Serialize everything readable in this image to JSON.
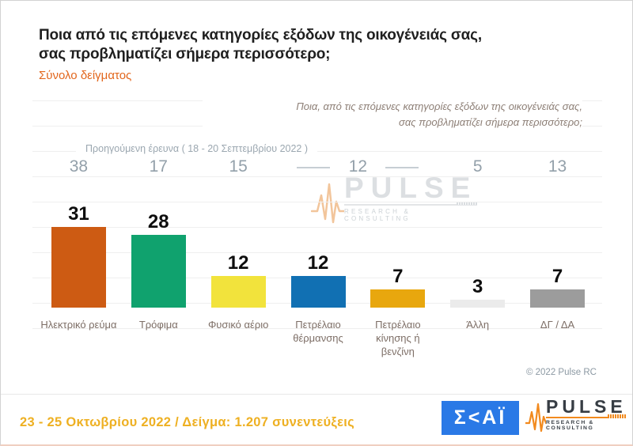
{
  "header": {
    "title_line1": "Ποια από τις επόμενες κατηγορίες εξόδων της οικογένειάς σας,",
    "title_line2": "σας προβληματίζει σήμερα περισσότερο;",
    "subtitle": "Σύνολο δείγματος"
  },
  "chart_note": {
    "line1": "Ποια, από τις επόμενες κατηγορίες εξόδων της οικογένειάς σας,",
    "line2": "σας προβληματίζει σήμερα περισσότερο;"
  },
  "chart_data": {
    "type": "bar",
    "title": "Ποια από τις επόμενες κατηγορίες εξόδων της οικογένειάς σας, σας προβληματίζει σήμερα περισσότερο;",
    "categories": [
      "Ηλεκτρικό ρεύμα",
      "Τρόφιμα",
      "Φυσικό αέριο",
      "Πετρέλαιο θέρμανσης",
      "Πετρέλαιο κίνησης ή βενζίνη",
      "Άλλη",
      "ΔΓ / ΔΑ"
    ],
    "values": [
      31,
      28,
      12,
      12,
      7,
      3,
      7
    ],
    "bar_colors": [
      "#cd5b13",
      "#10a26e",
      "#f2e33c",
      "#1170b3",
      "#e8a70e",
      "#ebebeb",
      "#9c9c9c"
    ],
    "previous_survey_label": "Προηγούμενη έρευνα  ( 18 - 20 Σεπτεμβρίου  2022 )",
    "previous_values": [
      {
        "value": 38,
        "columns": [
          0
        ]
      },
      {
        "value": 17,
        "columns": [
          1
        ]
      },
      {
        "value": 15,
        "columns": [
          2
        ]
      },
      {
        "value": 12,
        "columns": [
          3,
          4
        ]
      },
      {
        "value": 5,
        "columns": [
          5
        ]
      },
      {
        "value": 13,
        "columns": [
          6
        ]
      }
    ],
    "ylim": [
      0,
      80
    ],
    "grid": true,
    "legend": "none"
  },
  "watermark": {
    "brand": "PULSE",
    "tagline": "RESEARCH & CONSULTING"
  },
  "copyright": "© 2022 Pulse RC",
  "footer": {
    "fieldwork": "23 - 25  Οκτωβρίου  2022  /  Δείγμα:  1.207 συνεντεύξεις",
    "skai_logo_text": "Σ<ΑΪ",
    "pulse_brand": "PULSE",
    "pulse_tagline": "RESEARCH & CONSULTING"
  }
}
